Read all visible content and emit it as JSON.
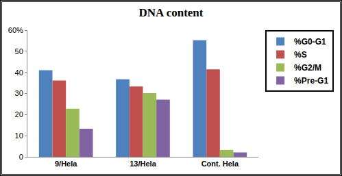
{
  "chart_data": {
    "type": "bar",
    "title": "DNA content",
    "categories": [
      "9/Hela",
      "13/Hela",
      "Cont. Hela"
    ],
    "series": [
      {
        "name": "%G0-G1",
        "color": "#4f81bd",
        "values": [
          41.0,
          36.7,
          55.2
        ]
      },
      {
        "name": "%S",
        "color": "#c0504d",
        "values": [
          36.2,
          33.3,
          41.4
        ]
      },
      {
        "name": "%G2/M",
        "color": "#9bbb59",
        "values": [
          22.8,
          30.2,
          3.3
        ]
      },
      {
        "name": "%Pre-G1",
        "color": "#8064a2",
        "values": [
          13.3,
          27.1,
          2.1
        ]
      }
    ],
    "ylim": [
      0,
      60
    ],
    "yticks": [
      0,
      10,
      20,
      30,
      40,
      50,
      {
        "value": 60,
        "label": "60%"
      }
    ],
    "grid": false,
    "legend": "right"
  }
}
